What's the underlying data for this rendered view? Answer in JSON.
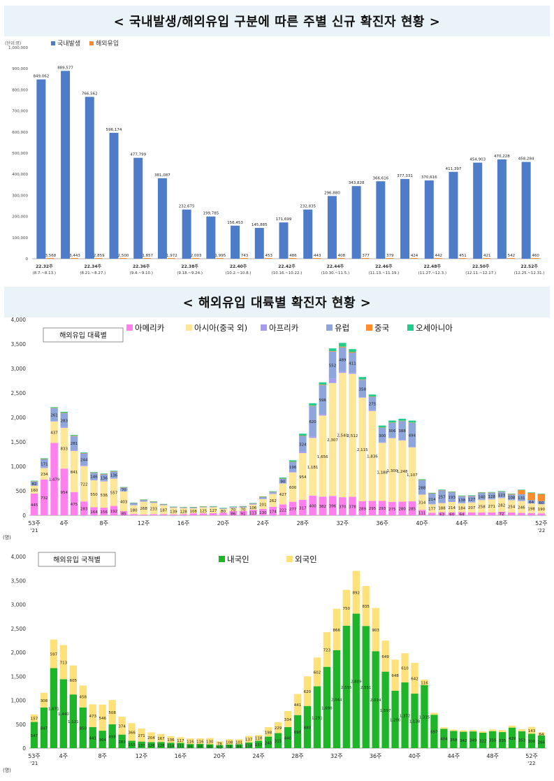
{
  "banner1": {
    "title": "< 국내발생/해외유입 구분에 따른 주별 신규 확진자 현황 >"
  },
  "banner2": {
    "title": "< 해외유입 대륙별 확진자 현황 >"
  },
  "colors": {
    "domestic": "#4f7cc9",
    "imported": "#f58a2e",
    "americas": "#ff80ec",
    "asia": "#ffe799",
    "africa": "#a79cf0",
    "europe": "#8ea6db",
    "china": "#ff8c2b",
    "oceania": "#22cc8a",
    "korean": "#1fb528",
    "foreigner": "#ffe17a"
  },
  "chart_data": [
    {
      "type": "bar",
      "unit": "(단위:명)",
      "legend": [
        "국내발생",
        "해외유입"
      ],
      "yticks": [
        "0",
        "100,000",
        "200,000",
        "300,000",
        "400,000",
        "500,000",
        "600,000",
        "700,000",
        "800,000",
        "900,000",
        "1,000,000"
      ],
      "ylim": [
        0,
        1000000
      ],
      "categories": [
        "22.32주",
        "22.33주",
        "22.34주",
        "22.35주",
        "22.36주",
        "22.37주",
        "22.38주",
        "22.39주",
        "22.40주",
        "22.41주",
        "22.42주",
        "22.43주",
        "22.44주",
        "22.45주",
        "22.46주",
        "22.47주",
        "22.48주",
        "22.49주",
        "22.50주",
        "22.51주",
        "22.52주"
      ],
      "xlabels": [
        {
          "i": 0,
          "week": "22.32주",
          "range": "(8.7.~8.13.)"
        },
        {
          "i": 2,
          "week": "22.34주",
          "range": "(8.21.~8.27.)"
        },
        {
          "i": 4,
          "week": "22.36주",
          "range": "(9.4.~9.10.)"
        },
        {
          "i": 6,
          "week": "22.38주",
          "range": "(9.18.~9.24.)"
        },
        {
          "i": 8,
          "week": "22.40주",
          "range": "(10.2.~10.8.)"
        },
        {
          "i": 10,
          "week": "22.42주",
          "range": "(10.16.~10.22.)"
        },
        {
          "i": 12,
          "week": "22.44주",
          "range": "(10.30.~11.5.)"
        },
        {
          "i": 14,
          "week": "22.46주",
          "range": "(11.13.~11.19.)"
        },
        {
          "i": 16,
          "week": "22.48주",
          "range": "(11.27.~12.3.)"
        },
        {
          "i": 18,
          "week": "22.50주",
          "range": "(12.11.~12.17.)"
        },
        {
          "i": 20,
          "week": "22.52주",
          "range": "(12.25.~12.31.)"
        }
      ],
      "series": [
        {
          "name": "국내발생",
          "values": [
            849062,
            889577,
            766562,
            596174,
            477799,
            381087,
            232675,
            199785,
            156453,
            145885,
            171699,
            232835,
            296880,
            343828,
            366616,
            377331,
            370616,
            411397,
            454903,
            470228,
            458284
          ],
          "labels": [
            "849,062",
            "889,577",
            "766,562",
            "596,174",
            "477,799",
            "381,087",
            "232,675",
            "199,785",
            "156,453",
            "145,885",
            "171,699",
            "232,835",
            "296,880",
            "343,828",
            "366,616",
            "377,331",
            "370,616",
            "411,397",
            "454,903",
            "470,228",
            "458,284"
          ]
        },
        {
          "name": "해외유입",
          "values": [
            3568,
            3443,
            2859,
            2500,
            1857,
            1972,
            2003,
            1995,
            743,
            453,
            486,
            443,
            408,
            377,
            379,
            424,
            442,
            451,
            421,
            542,
            460
          ],
          "labels": [
            "3,568",
            "3,443",
            "2,859",
            "2,500",
            "1,857",
            "1,972",
            "2,003",
            "1,995",
            "743",
            "453",
            "486",
            "443",
            "408",
            "377",
            "379",
            "424",
            "442",
            "451",
            "421",
            "542",
            "460"
          ]
        }
      ]
    },
    {
      "type": "bar",
      "stacked": true,
      "label": "해외유입 대륙별",
      "legend": [
        "아메리카",
        "아시아(중국 외)",
        "아프리카",
        "유럽",
        "중국",
        "오세아니아"
      ],
      "ylim": [
        0,
        4000
      ],
      "yticks": [
        "0",
        "500",
        "1,000",
        "1,500",
        "2,000",
        "2,500",
        "3,000",
        "3,500",
        "4,000"
      ],
      "xlabels": [
        {
          "i": 0,
          "t": "53주",
          "sub": "'21"
        },
        {
          "i": 3,
          "t": "4주"
        },
        {
          "i": 7,
          "t": "8주"
        },
        {
          "i": 11,
          "t": "12주"
        },
        {
          "i": 15,
          "t": "16주"
        },
        {
          "i": 19,
          "t": "20주"
        },
        {
          "i": 23,
          "t": "24주"
        },
        {
          "i": 27,
          "t": "28주"
        },
        {
          "i": 31,
          "t": "32주"
        },
        {
          "i": 35,
          "t": "36주"
        },
        {
          "i": 39,
          "t": "40주"
        },
        {
          "i": 43,
          "t": "44주"
        },
        {
          "i": 47,
          "t": "48주"
        },
        {
          "i": 51,
          "t": "52주",
          "sub": "'22"
        }
      ],
      "series": [
        {
          "name": "아메리카",
          "values": [
            445,
            732,
            1479,
            954,
            475,
            283,
            164,
            156,
            192,
            85,
            26,
            15,
            23,
            22,
            19,
            23,
            41,
            40,
            43,
            53,
            86,
            91,
            113,
            130,
            174,
            222,
            277,
            317,
            400,
            382,
            396,
            370,
            378,
            289,
            295,
            293,
            275,
            280,
            285,
            111,
            52,
            63,
            60,
            64,
            58,
            56,
            57,
            72,
            58,
            49,
            46,
            40
          ]
        },
        {
          "name": "아시아(중국 외)",
          "values": [
            160,
            234,
            437,
            833,
            841,
            722,
            550,
            536,
            557,
            403,
            180,
            268,
            233,
            187,
            139,
            128,
            106,
            125,
            127,
            80,
            70,
            70,
            106,
            201,
            262,
            427,
            600,
            954,
            1181,
            1656,
            2307,
            2540,
            2512,
            2115,
            1836,
            1188,
            1300,
            1248,
            1107,
            314,
            177,
            188,
            214,
            184,
            207,
            258,
            271,
            282,
            254,
            246,
            198,
            190
          ]
        },
        {
          "name": "아프리카",
          "values": [
            5,
            8,
            10,
            15,
            20,
            15,
            10,
            10,
            10,
            8,
            5,
            3,
            3,
            3,
            2,
            2,
            2,
            3,
            3,
            3,
            3,
            5,
            8,
            10,
            10,
            7,
            16,
            27,
            31,
            28,
            92,
            32,
            21,
            6,
            15,
            7,
            9,
            11,
            3,
            4,
            3,
            4,
            5,
            4,
            4,
            4,
            4,
            5,
            4,
            4,
            4,
            3
          ]
        },
        {
          "name": "유럽",
          "values": [
            82,
            171,
            261,
            283,
            281,
            244,
            146,
            136,
            136,
            70,
            40,
            30,
            20,
            15,
            12,
            10,
            15,
            10,
            10,
            10,
            15,
            15,
            16,
            34,
            32,
            90,
            196,
            324,
            620,
            596,
            552,
            489,
            411,
            358,
            275,
            300,
            306,
            388,
            494,
            288,
            214,
            257,
            193,
            138,
            127,
            140,
            128,
            123,
            108,
            131,
            64,
            60
          ]
        },
        {
          "name": "중국",
          "values": [
            5,
            5,
            8,
            10,
            10,
            8,
            5,
            5,
            5,
            4,
            3,
            3,
            2,
            2,
            2,
            2,
            2,
            2,
            2,
            2,
            2,
            3,
            3,
            3,
            4,
            5,
            5,
            6,
            8,
            10,
            10,
            15,
            14,
            8,
            7,
            6,
            6,
            6,
            6,
            5,
            4,
            4,
            5,
            5,
            5,
            5,
            6,
            6,
            10,
            84,
            147,
            140
          ]
        },
        {
          "name": "오세아니아",
          "values": [
            10,
            15,
            15,
            20,
            15,
            12,
            10,
            10,
            10,
            8,
            5,
            5,
            4,
            3,
            3,
            3,
            3,
            3,
            3,
            3,
            3,
            4,
            5,
            8,
            10,
            20,
            30,
            40,
            50,
            45,
            54,
            77,
            60,
            50,
            40,
            40,
            40,
            40,
            40,
            15,
            10,
            10,
            10,
            10,
            10,
            10,
            10,
            10,
            10,
            10,
            10,
            10
          ]
        }
      ]
    },
    {
      "type": "bar",
      "stacked": true,
      "label": "해외유입 국적별",
      "legend": [
        "내국인",
        "외국인"
      ],
      "ylim": [
        0,
        4000
      ],
      "yticks": [
        "0",
        "500",
        "1,000",
        "1,500",
        "2,000",
        "2,500",
        "3,000",
        "3,500",
        "4,000"
      ],
      "xlabels": [
        {
          "i": 0,
          "t": "53주",
          "sub": "'21"
        },
        {
          "i": 3,
          "t": "4주"
        },
        {
          "i": 7,
          "t": "8주"
        },
        {
          "i": 11,
          "t": "12주"
        },
        {
          "i": 15,
          "t": "16주"
        },
        {
          "i": 19,
          "t": "20주"
        },
        {
          "i": 23,
          "t": "24주"
        },
        {
          "i": 27,
          "t": "28주"
        },
        {
          "i": 31,
          "t": "32주"
        },
        {
          "i": 35,
          "t": "36주"
        },
        {
          "i": 39,
          "t": "40주"
        },
        {
          "i": 43,
          "t": "44주"
        },
        {
          "i": 47,
          "t": "48주"
        },
        {
          "i": 51,
          "t": "52주",
          "sub": "'22"
        }
      ],
      "series": [
        {
          "name": "내국인",
          "values": [
            547,
            847,
            1671,
            1440,
            1121,
            850,
            441,
            364,
            498,
            283,
            155,
            137,
            126,
            128,
            114,
            111,
            86,
            88,
            80,
            63,
            78,
            84,
            118,
            157,
            240,
            315,
            440,
            690,
            880,
            1291,
            1698,
            2044,
            2555,
            2809,
            2551,
            2024,
            1597,
            1200,
            1372,
            1138,
            1315,
            697,
            404,
            358,
            342,
            349,
            322,
            355,
            335,
            429,
            353,
            300,
            266
          ]
        },
        {
          "name": "외국인",
          "values": [
            157,
            308,
            597,
            713,
            605,
            458,
            473,
            546,
            508,
            374,
            366,
            271,
            204,
            167,
            136,
            117,
            116,
            116,
            130,
            78,
            108,
            101,
            137,
            118,
            198,
            229,
            334,
            441,
            620,
            602,
            723,
            866,
            750,
            892,
            835,
            903,
            649,
            648,
            610,
            642,
            116,
            40,
            30,
            28,
            30,
            28,
            30,
            35,
            40,
            40,
            40,
            143,
            64
          ]
        }
      ]
    }
  ]
}
